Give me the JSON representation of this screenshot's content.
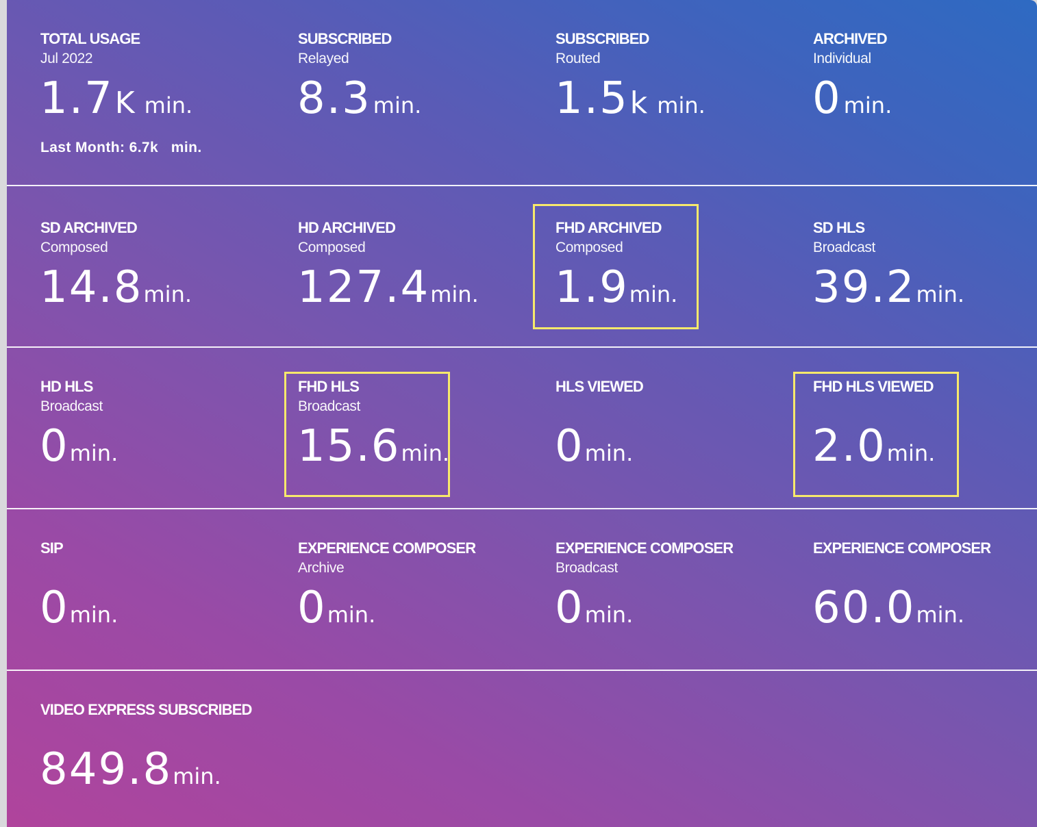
{
  "rows": [
    [
      {
        "label": "TOTAL USAGE",
        "sub": "Jul 2022",
        "value": "1.7",
        "magnitude": "K",
        "unit": "min.",
        "extra": "Last Month: 6.7k   min."
      },
      {
        "label": "SUBSCRIBED",
        "sub": "Relayed",
        "value": "8.3",
        "magnitude": "",
        "unit": "min."
      },
      {
        "label": "SUBSCRIBED",
        "sub": "Routed",
        "value": "1.5",
        "magnitude": "k",
        "unit": "min."
      },
      {
        "label": "ARCHIVED",
        "sub": "Individual",
        "value": "0",
        "magnitude": "",
        "unit": "min."
      }
    ],
    [
      {
        "label": "SD ARCHIVED",
        "sub": "Composed",
        "value": "14.8",
        "magnitude": "",
        "unit": "min."
      },
      {
        "label": "HD ARCHIVED",
        "sub": "Composed",
        "value": "127.4",
        "magnitude": "",
        "unit": "min."
      },
      {
        "label": "FHD ARCHIVED",
        "sub": "Composed",
        "value": "1.9",
        "magnitude": "",
        "unit": "min.",
        "highlight": true
      },
      {
        "label": "SD HLS",
        "sub": "Broadcast",
        "value": "39.2",
        "magnitude": "",
        "unit": "min."
      }
    ],
    [
      {
        "label": "HD HLS",
        "sub": "Broadcast",
        "value": "0",
        "magnitude": "",
        "unit": "min."
      },
      {
        "label": "FHD HLS",
        "sub": "Broadcast",
        "value": "15.6",
        "magnitude": "",
        "unit": "min.",
        "highlight": true
      },
      {
        "label": "HLS VIEWED",
        "sub": "",
        "value": "0",
        "magnitude": "",
        "unit": "min."
      },
      {
        "label": "FHD HLS VIEWED",
        "sub": "",
        "value": "2.0",
        "magnitude": "",
        "unit": "min.",
        "highlight": true
      }
    ],
    [
      {
        "label": "SIP",
        "sub": "",
        "value": "0",
        "magnitude": "",
        "unit": "min."
      },
      {
        "label": "EXPERIENCE COMPOSER",
        "sub": "Archive",
        "value": "0",
        "magnitude": "",
        "unit": "min."
      },
      {
        "label": "EXPERIENCE COMPOSER",
        "sub": "Broadcast",
        "value": "0",
        "magnitude": "",
        "unit": "min."
      },
      {
        "label": "EXPERIENCE COMPOSER",
        "sub": "",
        "value": "60.0",
        "magnitude": "",
        "unit": "min."
      }
    ],
    [
      {
        "label": "VIDEO EXPRESS SUBSCRIBED",
        "sub": "",
        "value": "849.8",
        "magnitude": "",
        "unit": "min."
      }
    ]
  ],
  "colors": {
    "highlight_border": "#f7e96b",
    "divider": "#ffffff",
    "text": "#ffffff"
  }
}
